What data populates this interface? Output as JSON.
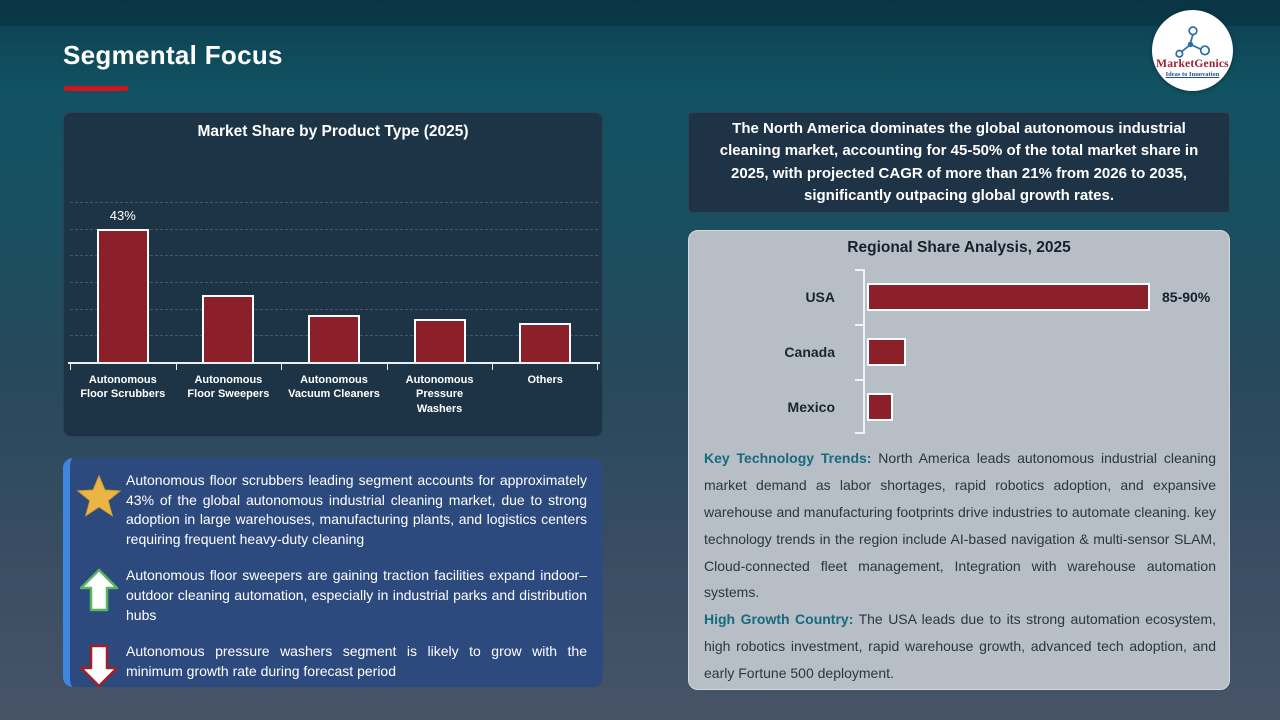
{
  "slide": {
    "title": "Segmental Focus",
    "logo": {
      "brand": "MarketGenics",
      "tagline": "Ideas to Innovation"
    }
  },
  "colors": {
    "title_underline_red": "#cf1420",
    "bar_maroon": "#8b1f2a",
    "chart_panel_navy": "#1d3447",
    "highlight_box_navy": "#1e3346",
    "insight_box_blue": "#2d4a7e",
    "insight_accent_blue": "#3e87e0",
    "regional_panel_gray": "#b7bec5",
    "note_heading_teal": "#17697e",
    "star_gold": "#eab543",
    "up_arrow_green": "#57b65c",
    "down_arrow_red": "#a21e28"
  },
  "chart_data": [
    {
      "type": "bar",
      "title": "Market Share by Product Type (2025)",
      "categories": [
        "Autonomous\nFloor Scrubbers",
        "Autonomous\nFloor Sweepers",
        "Autonomous\nVacuum Cleaners",
        "Autonomous\nPressure\nWashers",
        "Others"
      ],
      "values": [
        43,
        21.5,
        15,
        14,
        12.5
      ],
      "data_labels": [
        "43%",
        "",
        "",
        "",
        ""
      ],
      "xlabel": "",
      "ylabel": "",
      "ylim": [
        0,
        51.6
      ],
      "grid": "horizontal-dashed",
      "legend": "none"
    },
    {
      "type": "bar",
      "orientation": "horizontal",
      "title": "Regional Share Analysis, 2025",
      "categories": [
        "USA",
        "Canada",
        "Mexico"
      ],
      "values": [
        87.5,
        12,
        8
      ],
      "data_labels": [
        "85-90%",
        "",
        ""
      ],
      "xlim": [
        0,
        87.5
      ],
      "grid": "off",
      "legend": "none"
    }
  ],
  "highlight_box": {
    "text": "The North America dominates the global autonomous industrial cleaning market, accounting for 45-50% of the total market share in 2025, with projected CAGR of more than 21% from 2026 to 2035, significantly outpacing global growth rates."
  },
  "insights": [
    {
      "icon": "star-icon",
      "text": "Autonomous floor scrubbers leading segment accounts for approximately 43% of the global autonomous industrial cleaning market, due to strong adoption in large warehouses, manufacturing plants, and logistics centers requiring frequent heavy-duty cleaning"
    },
    {
      "icon": "up-arrow-icon",
      "text": "Autonomous floor sweepers are gaining traction facilities expand indoor–outdoor cleaning automation, especially in industrial parks and distribution hubs"
    },
    {
      "icon": "down-arrow-icon",
      "text": "Autonomous pressure washers segment is likely to grow with the minimum growth rate during forecast period"
    }
  ],
  "regional_notes": [
    {
      "heading": "Key Technology Trends:",
      "body": " North America leads autonomous industrial cleaning market demand as labor shortages, rapid robotics adoption, and expansive warehouse and manufacturing footprints drive industries to automate cleaning. key technology trends in the region include AI-based navigation & multi-sensor SLAM, Cloud-connected fleet management, Integration with warehouse automation systems."
    },
    {
      "heading": "High Growth Country:",
      "body": " The USA leads due to its strong automation ecosystem, high robotics investment, rapid warehouse growth, advanced tech adoption, and early Fortune 500 deployment."
    }
  ]
}
